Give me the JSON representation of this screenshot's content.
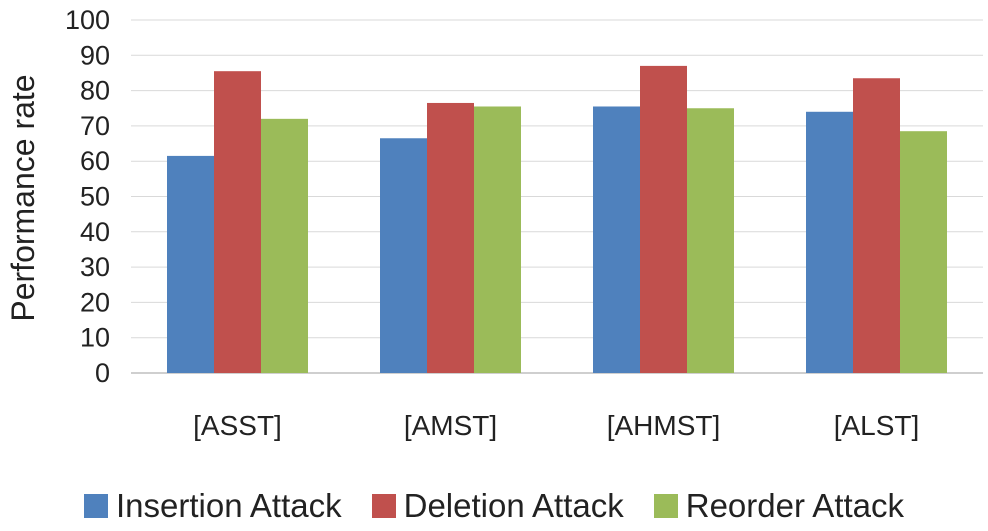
{
  "chart_data": {
    "type": "bar",
    "title": "",
    "xlabel": "",
    "ylabel": "Performance rate",
    "ylim": [
      0,
      100
    ],
    "yticks": [
      0,
      10,
      20,
      30,
      40,
      50,
      60,
      70,
      80,
      90,
      100
    ],
    "grid": true,
    "legend_position": "bottom",
    "categories": [
      "[ASST]",
      "[AMST]",
      "[AHMST]",
      "[ALST]"
    ],
    "series": [
      {
        "name": "Insertion Attack",
        "color": "#4F81BD",
        "values": [
          61.5,
          66.5,
          75.5,
          74
        ]
      },
      {
        "name": "Deletion Attack",
        "color": "#C0504D",
        "values": [
          85.5,
          76.5,
          87,
          83.5
        ]
      },
      {
        "name": "Reorder Attack",
        "color": "#9BBB59",
        "values": [
          72,
          75.5,
          75,
          68.5
        ]
      }
    ]
  }
}
